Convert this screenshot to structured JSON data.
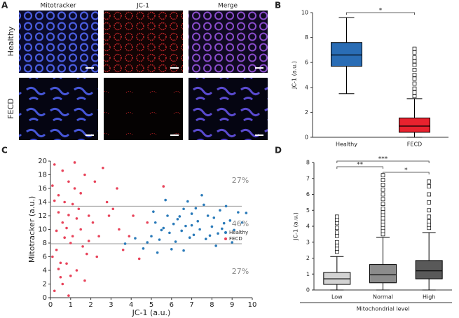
{
  "chart_data": [
    {
      "type": "image",
      "panel_label": "A",
      "columns": [
        "Mitotracker",
        "JC-1",
        "Merge"
      ],
      "rows": [
        "Healthy",
        "FECD"
      ]
    },
    {
      "type": "box",
      "panel_label": "B",
      "ylabel": "JC-1 (a.u.)",
      "ylim": [
        0,
        10
      ],
      "yticks": [
        0,
        2,
        4,
        6,
        8,
        10
      ],
      "boxes": [
        {
          "name": "Healthy",
          "color": "#2a6db5",
          "whisker_low": 3.5,
          "q1": 5.7,
          "median": 6.6,
          "q3": 7.6,
          "whisker_high": 9.6,
          "outliers": []
        },
        {
          "name": "FECD",
          "color": "#e8222e",
          "whisker_low": 0,
          "q1": 0.4,
          "median": 0.9,
          "q3": 1.55,
          "whisker_high": 3.1,
          "outliers": [
            3.3,
            3.6,
            3.9,
            4.3,
            4.7,
            5.0,
            5.4,
            5.8,
            6.1,
            6.4,
            6.8,
            7.1
          ]
        }
      ],
      "significance": [
        {
          "pair": [
            "Healthy",
            "FECD"
          ],
          "label": "*"
        }
      ]
    },
    {
      "type": "scatter",
      "panel_label": "C",
      "xlabel": "JC-1 (a.u.)",
      "ylabel": "Mitotracker (a.u.)",
      "xlim": [
        0,
        10
      ],
      "xticks": [
        0,
        1,
        2,
        3,
        4,
        5,
        6,
        7,
        8,
        9,
        10
      ],
      "ylim": [
        0,
        20
      ],
      "yticks": [
        0,
        2,
        4,
        6,
        8,
        10,
        12,
        14,
        16,
        18,
        20
      ],
      "hlines": [
        7.9,
        13.4
      ],
      "annotations": [
        "27%",
        "46%",
        "27%"
      ],
      "series": [
        {
          "name": "FECD",
          "color": "#e8435a",
          "x": [
            0.2,
            0.5,
            0.8,
            0.3,
            1.1,
            0.6,
            1.4,
            0.4,
            0.9,
            0.2,
            1.7,
            1.2,
            0.7,
            1.9,
            1.5,
            1.0,
            0.1,
            1.3,
            0.6,
            0.9,
            2.1,
            2.4,
            2.8,
            2.2,
            2.6,
            3.1,
            3.4,
            3.6,
            4.1,
            3.9,
            4.4,
            5.6,
            4.8,
            0.4,
            0.8,
            1.6,
            0.3,
            1.1,
            0.7,
            1.8,
            0.5,
            1.3,
            0.2,
            0.9,
            1.5,
            0.6,
            1.2,
            0.1,
            1.9,
            2.3,
            2.9,
            3.3,
            1.0,
            0.4,
            1.7
          ],
          "y": [
            1,
            3,
            5,
            7,
            9,
            11,
            13,
            15,
            17,
            19.5,
            18,
            16,
            14,
            12,
            10,
            8,
            6,
            4,
            2,
            0.3,
            11,
            9,
            14,
            17,
            19,
            13,
            10,
            7,
            12,
            9,
            5.7,
            16.3,
            11,
            12.5,
            10.2,
            7.5,
            9.8,
            13.7,
            8.8,
            6.4,
            5.1,
            11.6,
            14.2,
            12.1,
            15.3,
            18.6,
            19.8,
            16.4,
            8.3,
            6,
            12,
            16,
            3.2,
            4.2,
            2.5
          ]
        },
        {
          "name": "Healthy",
          "color": "#2a7ab9",
          "x": [
            4.6,
            5.0,
            5.2,
            5.4,
            5.6,
            5.8,
            5.9,
            6.1,
            6.2,
            6.3,
            6.5,
            6.6,
            6.7,
            6.9,
            7.0,
            7.1,
            7.3,
            7.4,
            7.6,
            7.7,
            7.8,
            8.0,
            8.1,
            8.3,
            8.4,
            8.6,
            8.7,
            8.9,
            9.1,
            9.3,
            9.5,
            9.7,
            5.3,
            6.0,
            5.1,
            6.8,
            7.5,
            4.8,
            4.2,
            3.7,
            8.2,
            9.0,
            5.7,
            6.4,
            7.2,
            7.9,
            8.5,
            6.6,
            7.0,
            5.5
          ],
          "y": [
            7.2,
            9,
            11,
            8.5,
            10.2,
            12,
            9.5,
            10.8,
            8.2,
            11.5,
            9.8,
            13,
            10.5,
            8.8,
            12.3,
            9.2,
            11.2,
            10,
            13.6,
            8.6,
            12,
            10.4,
            11.7,
            9.4,
            12.8,
            10.9,
            13.4,
            11.3,
            9.9,
            12.5,
            11,
            12.4,
            6.6,
            7.1,
            12.6,
            14.1,
            15,
            8.1,
            8.7,
            7.9,
            7.6,
            8.1,
            14.3,
            11.9,
            13.1,
            9.1,
            10.1,
            6.9,
            10.6,
            9.9
          ]
        }
      ]
    },
    {
      "type": "box",
      "panel_label": "D",
      "ylabel": "JC-1 (a.u.)",
      "xlabel": "Mitochondrial level",
      "ylim": [
        0,
        8
      ],
      "yticks": [
        0,
        1,
        2,
        3,
        4,
        5,
        6,
        7,
        8
      ],
      "boxes": [
        {
          "name": "Low",
          "color": "#d3d3d3",
          "whisker_low": 0,
          "q1": 0.35,
          "median": 0.7,
          "q3": 1.1,
          "whisker_high": 2.1,
          "outliers": [
            2.4,
            2.6,
            2.8,
            3.0,
            3.4,
            3.6,
            3.9,
            4.2,
            4.4,
            4.6
          ]
        },
        {
          "name": "Normal",
          "color": "#8c8c8c",
          "whisker_low": 0,
          "q1": 0.45,
          "median": 0.95,
          "q3": 1.6,
          "whisker_high": 3.3,
          "outliers": [
            3.5,
            3.7,
            3.9,
            4.1,
            4.3,
            4.5,
            4.7,
            4.9,
            5.1,
            5.4,
            5.7,
            6.0,
            6.3,
            6.6,
            6.9,
            7.2
          ]
        },
        {
          "name": "High",
          "color": "#595959",
          "whisker_low": 0,
          "q1": 0.7,
          "median": 1.2,
          "q3": 1.85,
          "whisker_high": 3.6,
          "outliers": [
            3.9,
            4.1,
            4.3,
            4.6,
            5.0,
            5.5,
            6.0,
            6.5,
            6.8
          ]
        }
      ],
      "significance": [
        {
          "pair": [
            "Low",
            "Normal"
          ],
          "label": "**"
        },
        {
          "pair": [
            "Low",
            "High"
          ],
          "label": "***"
        },
        {
          "pair": [
            "Normal",
            "High"
          ],
          "label": "*"
        }
      ]
    }
  ]
}
